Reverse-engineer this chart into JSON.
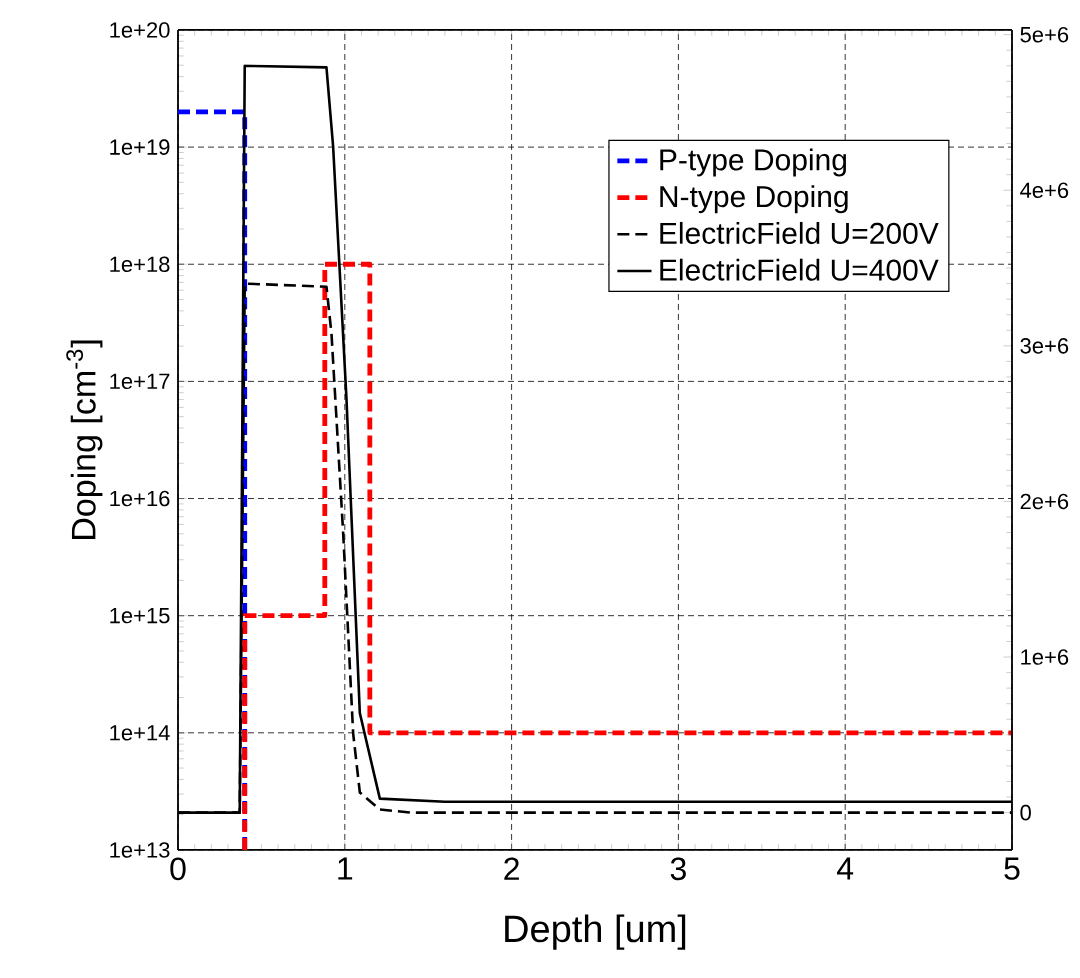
{
  "chart_data": {
    "type": "line",
    "xlabel": "Depth [um]",
    "ylabel": "Doping [cm$^{-3}$]",
    "log": "y",
    "grid": true,
    "legend": "top right",
    "xlim": [
      0,
      5
    ],
    "xticks": [
      0,
      1,
      2,
      3,
      4,
      5
    ],
    "ylim": [
      10000000000000.0,
      1e+20
    ],
    "yticks": [
      {
        "value": 10000000000000.0,
        "label": "1e+13"
      },
      {
        "value": 100000000000000.0,
        "label": "1e+14"
      },
      {
        "value": 1000000000000000.0,
        "label": "1e+15"
      },
      {
        "value": 1e+16,
        "label": "1e+16"
      },
      {
        "value": 1e+17,
        "label": "1e+17"
      },
      {
        "value": 1e+18,
        "label": "1e+18"
      },
      {
        "value": 1e+19,
        "label": "1e+19"
      },
      {
        "value": 1e+20,
        "label": "1e+20"
      }
    ],
    "y2lim": [
      -240000,
      5030000
    ],
    "y2ticks": [
      0,
      {
        "value": 1000000,
        "label": "1e+6"
      },
      {
        "value": 2000000,
        "label": "2e+6"
      },
      {
        "value": 3000000,
        "label": "3e+6"
      },
      {
        "value": 4000000,
        "label": "4e+6"
      },
      {
        "value": 5000000,
        "label": "5e+6"
      }
    ],
    "series": [
      {
        "name": "P-type Doping",
        "color": "#0000ff",
        "line_style": "dashed",
        "x": [
          0,
          0.4,
          0.4
        ],
        "values": [
          2e+19,
          2e+19,
          10000000000000.0
        ]
      },
      {
        "name": "N-type Doping",
        "color": "#ff0000",
        "line_style": "dashed",
        "x": [
          0.4,
          0.4,
          0.88,
          0.88,
          1.15,
          1.15,
          5
        ],
        "values": [
          10000000000000.0,
          1000000000000000.0,
          1000000000000000.0,
          1e+18,
          1e+18,
          100000000000000.0,
          100000000000000.0
        ]
      },
      {
        "name": "ElectricField U=200V",
        "color": "#000000",
        "line_style": "dashed",
        "axis": "y2",
        "x": [
          0,
          0.37,
          0.4,
          0.89,
          0.92,
          0.99,
          1.05,
          1.09,
          1.21,
          1.4,
          5
        ],
        "values": [
          0,
          0,
          3400000,
          3380000,
          3080000,
          1800000,
          510000,
          130000,
          20000,
          0,
          0
        ]
      },
      {
        "name": "ElectricField U=400V",
        "color": "#000000",
        "line_style": "solid",
        "axis": "y2",
        "x": [
          0,
          0.37,
          0.4,
          0.89,
          0.93,
          1.01,
          1.09,
          1.21,
          1.6,
          5
        ],
        "values": [
          0,
          0,
          4800000,
          4790000,
          4280000,
          2660000,
          640000,
          90000,
          70000,
          70000
        ]
      }
    ]
  }
}
